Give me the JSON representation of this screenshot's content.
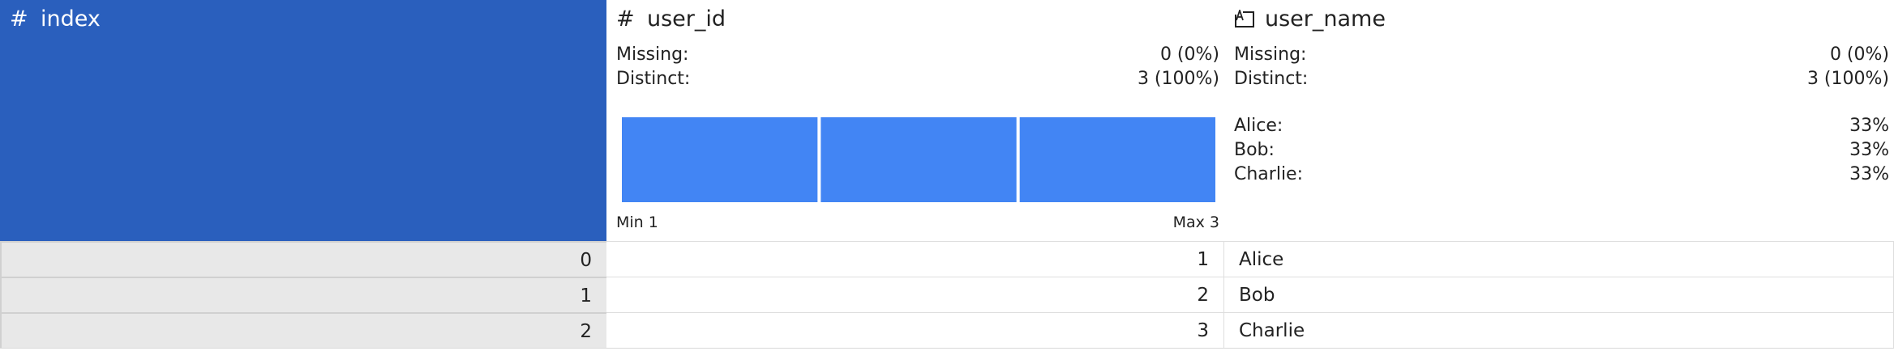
{
  "columns": {
    "index": {
      "name": "index",
      "type_icon": "hash-icon"
    },
    "user_id": {
      "name": "user_id",
      "type_icon": "hash-icon",
      "missing_label": "Missing:",
      "missing_value": "0 (0%)",
      "distinct_label": "Distinct:",
      "distinct_value": "3 (100%)",
      "min_label": "Min 1",
      "max_label": "Max 3"
    },
    "user_name": {
      "name": "user_name",
      "type_icon": "text-type-icon",
      "missing_label": "Missing:",
      "missing_value": "0 (0%)",
      "distinct_label": "Distinct:",
      "distinct_value": "3 (100%)",
      "categories": [
        {
          "label": "Alice:",
          "value": "33%"
        },
        {
          "label": "Bob:",
          "value": "33%"
        },
        {
          "label": "Charlie:",
          "value": "33%"
        }
      ]
    }
  },
  "chart_data": {
    "type": "bar",
    "categories": [
      "1",
      "2",
      "3"
    ],
    "values": [
      1,
      1,
      1
    ],
    "ylim": [
      0,
      1
    ],
    "color": "#4285f4"
  },
  "rows": [
    {
      "index": "0",
      "user_id": "1",
      "user_name": "Alice"
    },
    {
      "index": "1",
      "user_id": "2",
      "user_name": "Bob"
    },
    {
      "index": "2",
      "user_id": "3",
      "user_name": "Charlie"
    }
  ],
  "colors": {
    "index_header_bg": "#2a5fbd",
    "index_cell_bg": "#e8e8e8",
    "bar": "#4285f4"
  }
}
